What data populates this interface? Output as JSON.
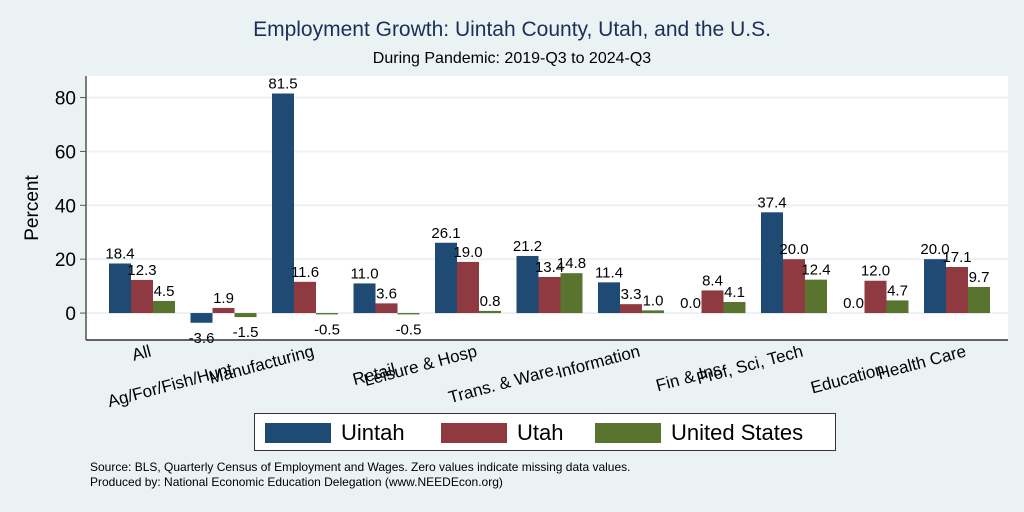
{
  "chart_data": {
    "type": "bar",
    "title": "Employment Growth: Uintah County, Utah, and the U.S.",
    "subtitle": "During Pandemic: 2019-Q3 to 2024-Q3",
    "xlabel": "",
    "ylabel": "Percent",
    "ylim": [
      -10,
      88
    ],
    "yticks": [
      0,
      20,
      40,
      60,
      80
    ],
    "grid": true,
    "legend_position": "bottom",
    "categories": [
      "All",
      "Ag/For/Fish/Hunt",
      "Manufacturing",
      "Retail",
      "Leisure & Hosp",
      "Trans. & Ware.",
      "Information",
      "Fin & Ins",
      "Prof, Sci, Tech",
      "Education",
      "Health Care"
    ],
    "series": [
      {
        "name": "Uintah",
        "color": "#1f4a73",
        "values": [
          18.4,
          -3.6,
          81.5,
          11.0,
          26.1,
          21.2,
          11.4,
          0.0,
          37.4,
          0.0,
          20.0
        ]
      },
      {
        "name": "Utah",
        "color": "#8f3a41",
        "values": [
          12.3,
          1.9,
          11.6,
          3.6,
          19.0,
          13.4,
          3.3,
          8.4,
          20.0,
          12.0,
          17.1
        ]
      },
      {
        "name": "United States",
        "color": "#58742f",
        "values": [
          4.5,
          -1.5,
          -0.5,
          -0.5,
          0.8,
          14.8,
          1.0,
          4.1,
          12.4,
          4.7,
          9.7
        ]
      }
    ],
    "annotations": [
      "Source: BLS, Quarterly Census of Employment and Wages. Zero values indicate missing data values.",
      "Produced by: National Economic Education Delegation (www.NEEDEcon.org)"
    ]
  }
}
